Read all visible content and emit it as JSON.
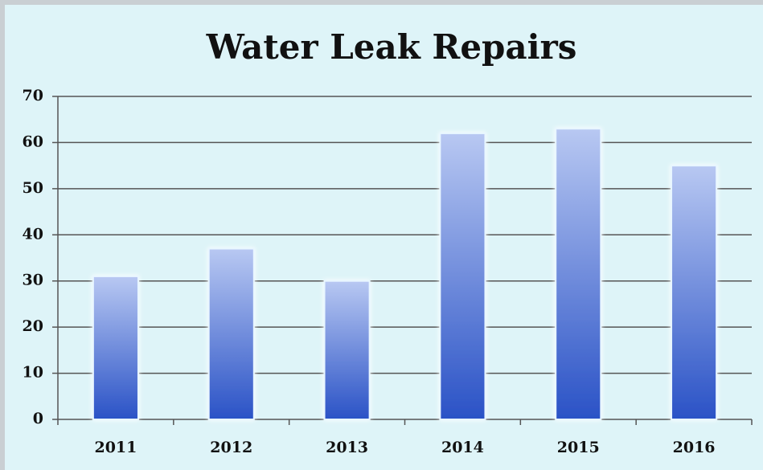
{
  "chart_data": {
    "type": "bar",
    "title": "Water Leak Repairs",
    "categories": [
      "2011",
      "2012",
      "2013",
      "2014",
      "2015",
      "2016"
    ],
    "values": [
      31,
      37,
      30,
      62,
      63,
      55
    ],
    "color": "#3a62cf",
    "ylim": [
      0,
      70
    ],
    "yticks": [
      0,
      10,
      20,
      30,
      40,
      50,
      60,
      70
    ],
    "grid": true
  }
}
